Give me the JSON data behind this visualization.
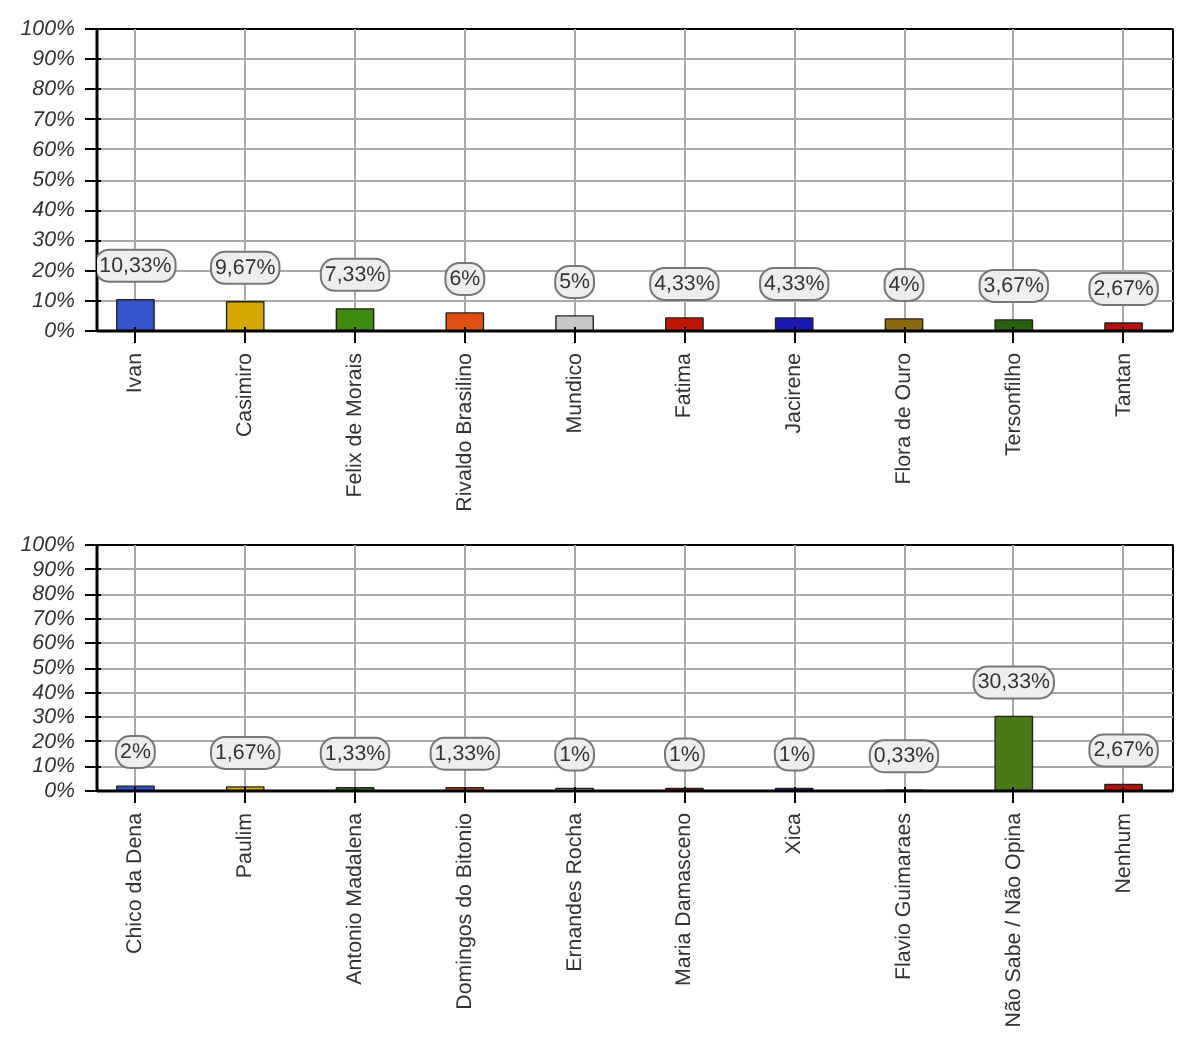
{
  "chart_data": [
    {
      "type": "bar",
      "categories": [
        "Ivan",
        "Casimiro",
        "Felix de Morais",
        "Rivaldo Brasilino",
        "Mundico",
        "Fatima",
        "Jacirene",
        "Flora de Ouro",
        "Tersonfilho",
        "Tantan"
      ],
      "values": [
        10.33,
        9.67,
        7.33,
        6,
        5,
        4.33,
        4.33,
        4,
        3.67,
        2.67
      ],
      "colors": [
        "#3355cc",
        "#d4a800",
        "#3f8a10",
        "#e05010",
        "#c8c8c8",
        "#c01808",
        "#1a1ab0",
        "#8a6a10",
        "#2a6010",
        "#b81010"
      ],
      "value_labels": [
        "10,33%",
        "9,67%",
        "7,33%",
        "6%",
        "5%",
        "4,33%",
        "4,33%",
        "4%",
        "3,67%",
        "2,67%"
      ],
      "ylim": [
        0,
        100
      ],
      "yticks": [
        {
          "value": 0,
          "label": "0%"
        },
        {
          "value": 10,
          "label": "10%"
        },
        {
          "value": 20,
          "label": "20%"
        },
        {
          "value": 30,
          "label": "30%"
        },
        {
          "value": 40,
          "label": "40%"
        },
        {
          "value": 50,
          "label": "50%"
        },
        {
          "value": 60,
          "label": "60%"
        },
        {
          "value": 70,
          "label": "70%"
        },
        {
          "value": 80,
          "label": "80%"
        },
        {
          "value": 90,
          "label": "90%"
        },
        {
          "value": 100,
          "label": "100%"
        }
      ],
      "grid": true
    },
    {
      "type": "bar",
      "categories": [
        "Chico da Dena",
        "Paulim",
        "Antonio Madalena",
        "Domingos do Bitonio",
        "Ernandes Rocha",
        "Maria Damasceno",
        "Xica",
        "Flavio Guimaraes",
        "Não Sabe / Não Opina",
        "Nenhum"
      ],
      "values": [
        2,
        1.67,
        1.33,
        1.33,
        1,
        1,
        1,
        0.33,
        30.33,
        2.67
      ],
      "colors": [
        "#3355cc",
        "#d4a800",
        "#3f8a10",
        "#e05010",
        "#c8c8c8",
        "#c01808",
        "#1a1ab0",
        "#8a6a10",
        "#4a7a18",
        "#b81010"
      ],
      "value_labels": [
        "2%",
        "1,67%",
        "1,33%",
        "1,33%",
        "1%",
        "1%",
        "1%",
        "0,33%",
        "30,33%",
        "2,67%"
      ],
      "ylim": [
        0,
        100
      ],
      "yticks": [
        {
          "value": 0,
          "label": "0%"
        },
        {
          "value": 10,
          "label": "10%"
        },
        {
          "value": 20,
          "label": "20%"
        },
        {
          "value": 30,
          "label": "30%"
        },
        {
          "value": 40,
          "label": "40%"
        },
        {
          "value": 50,
          "label": "50%"
        },
        {
          "value": 60,
          "label": "60%"
        },
        {
          "value": 70,
          "label": "70%"
        },
        {
          "value": 80,
          "label": "80%"
        },
        {
          "value": 90,
          "label": "90%"
        },
        {
          "value": 100,
          "label": "100%"
        }
      ],
      "grid": true
    }
  ]
}
